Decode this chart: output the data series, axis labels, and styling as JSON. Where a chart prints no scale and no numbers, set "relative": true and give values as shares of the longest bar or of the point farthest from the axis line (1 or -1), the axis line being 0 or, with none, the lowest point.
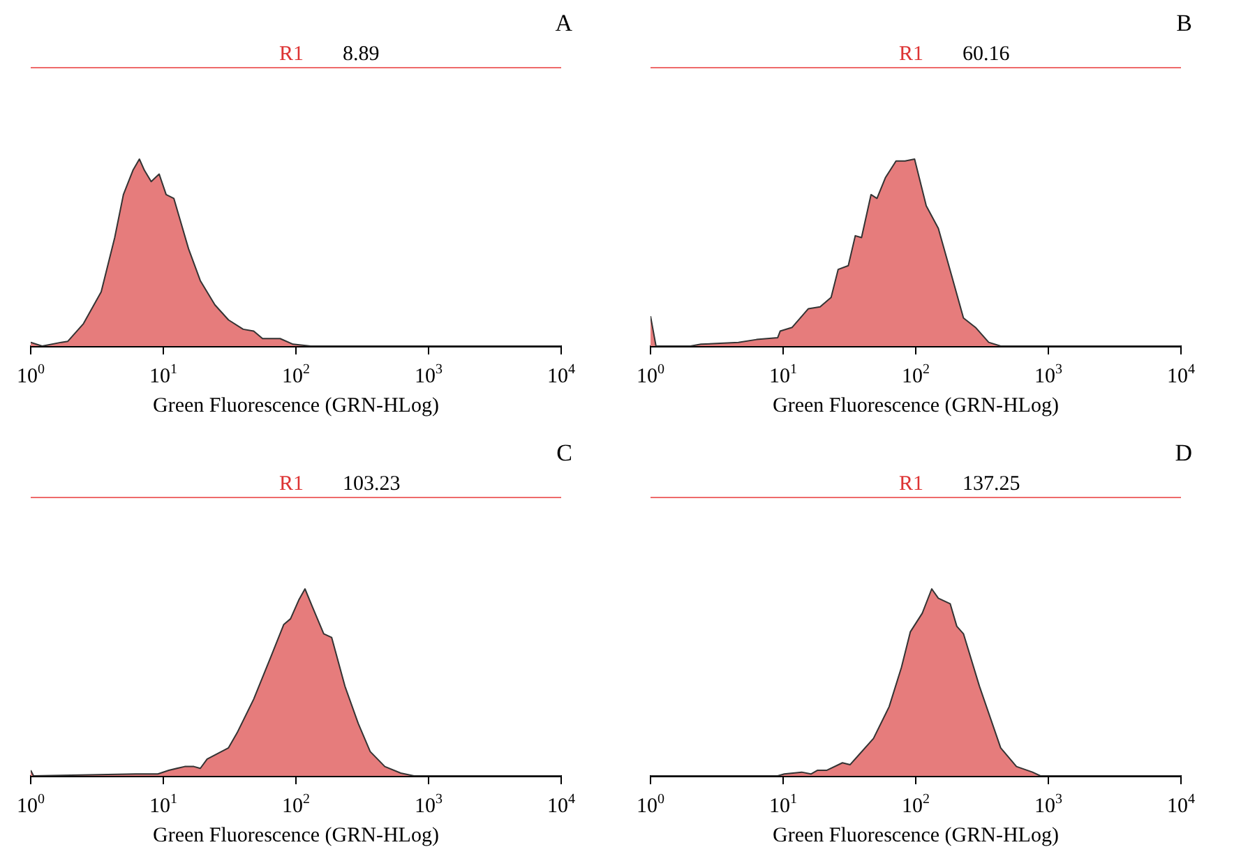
{
  "chart_data": [
    {
      "type": "area",
      "title": "A",
      "xlabel": "Green Fluorescence (GRN-HLog)",
      "log": "x",
      "relative": true,
      "color": "#e67c7c",
      "xlim": [
        1,
        10000
      ],
      "xticks": [
        {
          "value": 1,
          "label": "10$^{0}$"
        },
        {
          "value": 10,
          "label": "10$^{1}$"
        },
        {
          "value": 100,
          "label": "10$^{2}$"
        },
        {
          "value": 1000,
          "label": "10$^{3}$"
        },
        {
          "value": 10000,
          "label": "10$^{4}$"
        }
      ],
      "annotations": [
        "R1",
        "8.89"
      ],
      "x": [
        1,
        1.22,
        1.7,
        1.9,
        2.5,
        3.4,
        4.3,
        5.0,
        5.9,
        6.6,
        7.2,
        8.1,
        9.3,
        10.5,
        12,
        15.5,
        19,
        24.5,
        31,
        40,
        48,
        56,
        76,
        95,
        129,
        10000
      ],
      "values": [
        0.02,
        0,
        0.02,
        0.025,
        0.12,
        0.29,
        0.58,
        0.81,
        0.94,
        1.0,
        0.94,
        0.88,
        0.92,
        0.81,
        0.79,
        0.52,
        0.35,
        0.22,
        0.14,
        0.09,
        0.08,
        0.04,
        0.04,
        0.01,
        0,
        0
      ]
    },
    {
      "type": "area",
      "title": "B",
      "xlabel": "Green Fluorescence (GRN-HLog)",
      "log": "x",
      "relative": true,
      "color": "#e67c7c",
      "xlim": [
        1,
        10000
      ],
      "xticks": [
        {
          "value": 1,
          "label": "10$^{0}$"
        },
        {
          "value": 10,
          "label": "10$^{1}$"
        },
        {
          "value": 100,
          "label": "10$^{2}$"
        },
        {
          "value": 1000,
          "label": "10$^{3}$"
        },
        {
          "value": 10000,
          "label": "10$^{4}$"
        }
      ],
      "annotations": [
        "R1",
        "60.16"
      ],
      "x": [
        1,
        1.1,
        2.0,
        2.4,
        4.6,
        6.3,
        9.1,
        9.5,
        11.7,
        15.5,
        19,
        23,
        26,
        31,
        35,
        39,
        46,
        51,
        59,
        71,
        83,
        98,
        120,
        148,
        186,
        229,
        282,
        355,
        437,
        10000
      ],
      "values": [
        0.16,
        0,
        0,
        0.01,
        0.02,
        0.035,
        0.045,
        0.08,
        0.1,
        0.2,
        0.21,
        0.26,
        0.41,
        0.43,
        0.59,
        0.58,
        0.81,
        0.79,
        0.9,
        0.99,
        0.99,
        1.0,
        0.75,
        0.63,
        0.38,
        0.15,
        0.1,
        0.02,
        0,
        0
      ]
    },
    {
      "type": "area",
      "title": "C",
      "xlabel": "Green Fluorescence (GRN-HLog)",
      "log": "x",
      "relative": true,
      "color": "#e67c7c",
      "xlim": [
        1,
        10000
      ],
      "xticks": [
        {
          "value": 1,
          "label": "10$^{0}$"
        },
        {
          "value": 10,
          "label": "10$^{1}$"
        },
        {
          "value": 100,
          "label": "10$^{2}$"
        },
        {
          "value": 1000,
          "label": "10$^{3}$"
        },
        {
          "value": 10000,
          "label": "10$^{4}$"
        }
      ],
      "annotations": [
        "R1",
        "103.23"
      ],
      "x": [
        1,
        1.05,
        6.2,
        9.1,
        11,
        14.5,
        17,
        19,
        21.4,
        31,
        36,
        48,
        65,
        81,
        91,
        105,
        117,
        132,
        162,
        186,
        234,
        295,
        363,
        468,
        617,
        776,
        10000
      ],
      "values": [
        0.03,
        0,
        0.01,
        0.01,
        0.03,
        0.05,
        0.05,
        0.04,
        0.09,
        0.15,
        0.23,
        0.41,
        0.64,
        0.81,
        0.84,
        0.94,
        1.0,
        0.91,
        0.76,
        0.74,
        0.48,
        0.28,
        0.13,
        0.05,
        0.015,
        0,
        0
      ]
    },
    {
      "type": "area",
      "title": "D",
      "xlabel": "Green Fluorescence (GRN-HLog)",
      "log": "x",
      "relative": true,
      "color": "#e67c7c",
      "xlim": [
        1,
        10000
      ],
      "xticks": [
        {
          "value": 1,
          "label": "10$^{0}$"
        },
        {
          "value": 10,
          "label": "10$^{1}$"
        },
        {
          "value": 100,
          "label": "10$^{2}$"
        },
        {
          "value": 1000,
          "label": "10$^{3}$"
        },
        {
          "value": 10000,
          "label": "10$^{4}$"
        }
      ],
      "annotations": [
        "R1",
        "137.25"
      ],
      "x": [
        1,
        9.1,
        10.2,
        13.8,
        16.2,
        18.2,
        21.4,
        28,
        32,
        37,
        48,
        63,
        78,
        91,
        112,
        132,
        148,
        182,
        204,
        229,
        302,
        437,
        575,
        759,
        871,
        10000
      ],
      "values": [
        0,
        0,
        0.01,
        0.02,
        0.01,
        0.03,
        0.03,
        0.07,
        0.06,
        0.11,
        0.2,
        0.37,
        0.58,
        0.77,
        0.87,
        1.0,
        0.95,
        0.92,
        0.8,
        0.76,
        0.48,
        0.15,
        0.05,
        0.02,
        0,
        0
      ]
    }
  ]
}
